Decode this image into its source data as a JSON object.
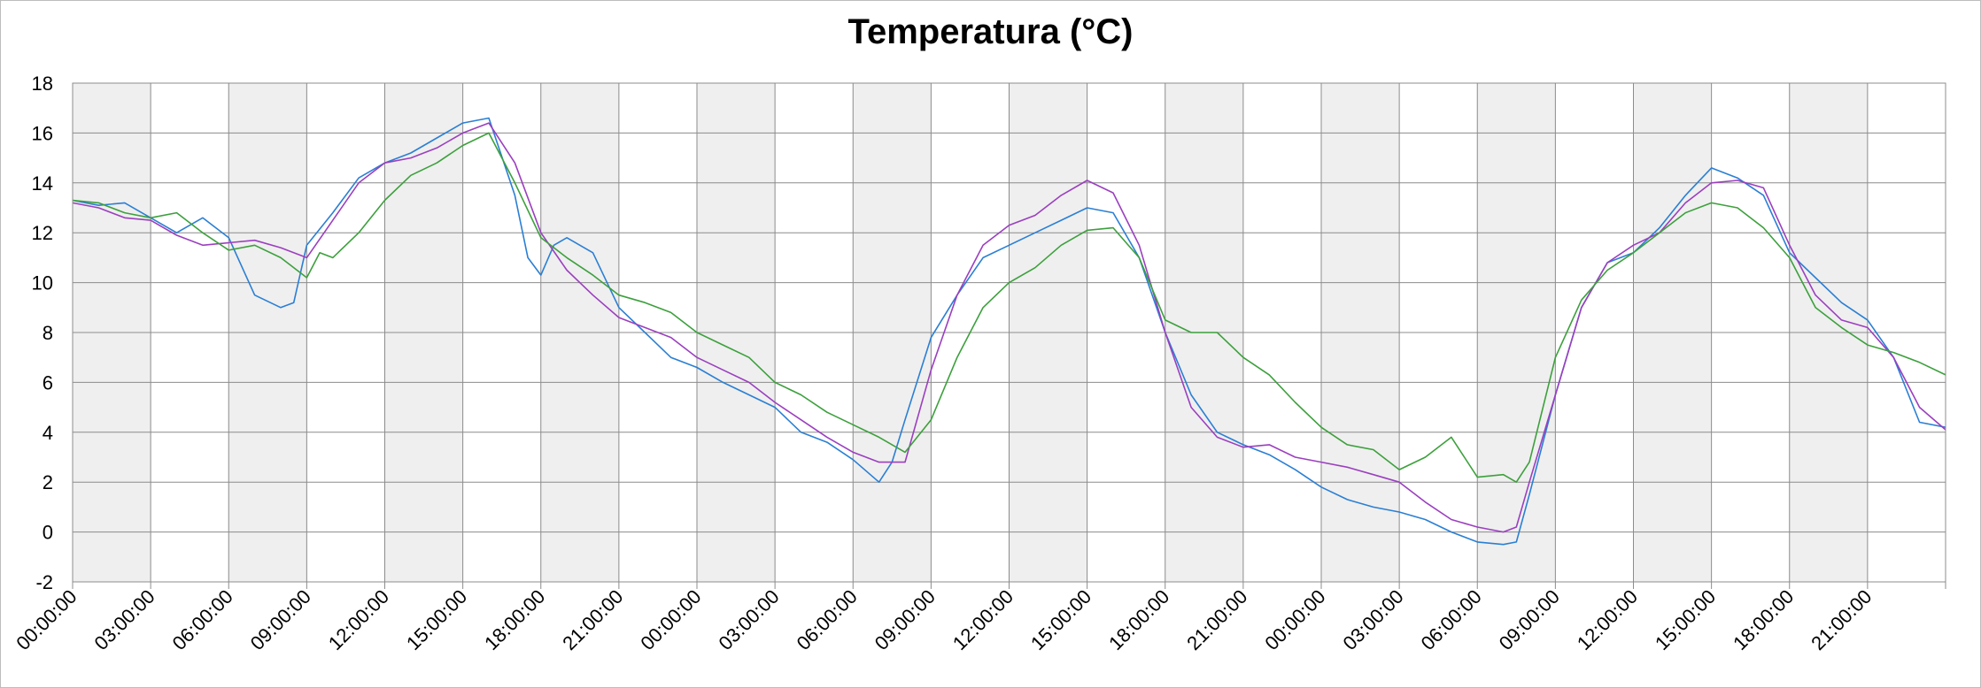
{
  "chart_data": {
    "type": "line",
    "title": "Temperatura (°C)",
    "xlabel": "",
    "ylabel": "",
    "ylim": [
      -2,
      18
    ],
    "y_ticks": [
      "18",
      "16",
      "14",
      "12",
      "10",
      "8",
      "6",
      "4",
      "2",
      "0",
      "-2"
    ],
    "x_ticks": [
      "00:00:00",
      "03:00:00",
      "06:00:00",
      "09:00:00",
      "12:00:00",
      "15:00:00",
      "18:00:00",
      "21:00:00",
      "00:00:00",
      "03:00:00",
      "06:00:00",
      "09:00:00",
      "12:00:00",
      "15:00:00",
      "18:00:00",
      "21:00:00",
      "00:00:00",
      "03:00:00",
      "06:00:00",
      "09:00:00",
      "12:00:00",
      "15:00:00",
      "18:00:00",
      "21:00:00"
    ],
    "x_range_hours": [
      0,
      72
    ],
    "grid": true,
    "shaded_bands": "alternating 3-hour bands (every other interval shaded light gray)",
    "legend": "none",
    "series": [
      {
        "color": "#2a7fd4",
        "points": [
          [
            0,
            13.3
          ],
          [
            1,
            13.1
          ],
          [
            2,
            13.2
          ],
          [
            3,
            12.6
          ],
          [
            4,
            12.0
          ],
          [
            5,
            12.6
          ],
          [
            6,
            11.8
          ],
          [
            7,
            9.5
          ],
          [
            8,
            9.0
          ],
          [
            8.5,
            9.2
          ],
          [
            9,
            11.5
          ],
          [
            10,
            12.8
          ],
          [
            11,
            14.2
          ],
          [
            12,
            14.8
          ],
          [
            13,
            15.2
          ],
          [
            14,
            15.8
          ],
          [
            15,
            16.4
          ],
          [
            16,
            16.6
          ],
          [
            17,
            13.5
          ],
          [
            17.5,
            11.0
          ],
          [
            18,
            10.3
          ],
          [
            18.5,
            11.5
          ],
          [
            19,
            11.8
          ],
          [
            20,
            11.2
          ],
          [
            21,
            9.0
          ],
          [
            22,
            8.0
          ],
          [
            23,
            7.0
          ],
          [
            24,
            6.6
          ],
          [
            25,
            6.0
          ],
          [
            26,
            5.5
          ],
          [
            27,
            5.0
          ],
          [
            28,
            4.0
          ],
          [
            29,
            3.6
          ],
          [
            30,
            2.9
          ],
          [
            31,
            2.0
          ],
          [
            31.5,
            2.8
          ],
          [
            32,
            4.5
          ],
          [
            33,
            7.8
          ],
          [
            34,
            9.5
          ],
          [
            35,
            11.0
          ],
          [
            36,
            11.5
          ],
          [
            37,
            12.0
          ],
          [
            38,
            12.5
          ],
          [
            39,
            13.0
          ],
          [
            40,
            12.8
          ],
          [
            41,
            11.0
          ],
          [
            42,
            8.0
          ],
          [
            43,
            5.5
          ],
          [
            44,
            4.0
          ],
          [
            45,
            3.5
          ],
          [
            46,
            3.1
          ],
          [
            47,
            2.5
          ],
          [
            48,
            1.8
          ],
          [
            49,
            1.3
          ],
          [
            50,
            1.0
          ],
          [
            51,
            0.8
          ],
          [
            52,
            0.5
          ],
          [
            53,
            0.0
          ],
          [
            54,
            -0.4
          ],
          [
            55,
            -0.5
          ],
          [
            55.5,
            -0.4
          ],
          [
            56,
            1.5
          ],
          [
            57,
            5.5
          ],
          [
            58,
            9.0
          ],
          [
            59,
            10.8
          ],
          [
            60,
            11.2
          ],
          [
            61,
            12.2
          ],
          [
            62,
            13.5
          ],
          [
            63,
            14.6
          ],
          [
            64,
            14.2
          ],
          [
            65,
            13.5
          ],
          [
            66,
            11.2
          ],
          [
            67,
            10.2
          ],
          [
            68,
            9.2
          ],
          [
            69,
            8.5
          ],
          [
            70,
            7.0
          ],
          [
            71,
            4.4
          ],
          [
            72,
            4.2
          ]
        ]
      },
      {
        "color": "#9b3fbf",
        "points": [
          [
            0,
            13.2
          ],
          [
            1,
            13.0
          ],
          [
            2,
            12.6
          ],
          [
            3,
            12.5
          ],
          [
            4,
            11.9
          ],
          [
            5,
            11.5
          ],
          [
            6,
            11.6
          ],
          [
            7,
            11.7
          ],
          [
            8,
            11.4
          ],
          [
            9,
            11.0
          ],
          [
            10,
            12.5
          ],
          [
            11,
            14.0
          ],
          [
            12,
            14.8
          ],
          [
            13,
            15.0
          ],
          [
            14,
            15.4
          ],
          [
            15,
            16.0
          ],
          [
            16,
            16.4
          ],
          [
            17,
            14.8
          ],
          [
            18,
            12.0
          ],
          [
            19,
            10.5
          ],
          [
            20,
            9.5
          ],
          [
            21,
            8.6
          ],
          [
            22,
            8.2
          ],
          [
            23,
            7.8
          ],
          [
            24,
            7.0
          ],
          [
            25,
            6.5
          ],
          [
            26,
            6.0
          ],
          [
            27,
            5.2
          ],
          [
            28,
            4.5
          ],
          [
            29,
            3.8
          ],
          [
            30,
            3.2
          ],
          [
            31,
            2.8
          ],
          [
            32,
            2.8
          ],
          [
            33,
            6.5
          ],
          [
            34,
            9.5
          ],
          [
            35,
            11.5
          ],
          [
            36,
            12.3
          ],
          [
            37,
            12.7
          ],
          [
            38,
            13.5
          ],
          [
            39,
            14.1
          ],
          [
            40,
            13.6
          ],
          [
            41,
            11.5
          ],
          [
            42,
            8.0
          ],
          [
            43,
            5.0
          ],
          [
            44,
            3.8
          ],
          [
            45,
            3.4
          ],
          [
            46,
            3.5
          ],
          [
            47,
            3.0
          ],
          [
            48,
            2.8
          ],
          [
            49,
            2.6
          ],
          [
            50,
            2.3
          ],
          [
            51,
            2.0
          ],
          [
            52,
            1.2
          ],
          [
            53,
            0.5
          ],
          [
            54,
            0.2
          ],
          [
            55,
            0.0
          ],
          [
            55.5,
            0.2
          ],
          [
            56,
            2.0
          ],
          [
            57,
            5.5
          ],
          [
            58,
            9.0
          ],
          [
            59,
            10.8
          ],
          [
            60,
            11.5
          ],
          [
            61,
            12.0
          ],
          [
            62,
            13.2
          ],
          [
            63,
            14.0
          ],
          [
            64,
            14.1
          ],
          [
            65,
            13.8
          ],
          [
            66,
            11.5
          ],
          [
            67,
            9.5
          ],
          [
            68,
            8.5
          ],
          [
            69,
            8.2
          ],
          [
            70,
            7.0
          ],
          [
            71,
            5.0
          ],
          [
            72,
            4.1
          ]
        ]
      },
      {
        "color": "#3ca03c",
        "points": [
          [
            0,
            13.3
          ],
          [
            1,
            13.2
          ],
          [
            2,
            12.8
          ],
          [
            3,
            12.6
          ],
          [
            4,
            12.8
          ],
          [
            5,
            12.0
          ],
          [
            6,
            11.3
          ],
          [
            7,
            11.5
          ],
          [
            8,
            11.0
          ],
          [
            9,
            10.2
          ],
          [
            9.5,
            11.2
          ],
          [
            10,
            11.0
          ],
          [
            11,
            12.0
          ],
          [
            12,
            13.3
          ],
          [
            13,
            14.3
          ],
          [
            14,
            14.8
          ],
          [
            15,
            15.5
          ],
          [
            16,
            16.0
          ],
          [
            17,
            14.0
          ],
          [
            18,
            11.8
          ],
          [
            19,
            11.0
          ],
          [
            20,
            10.3
          ],
          [
            21,
            9.5
          ],
          [
            22,
            9.2
          ],
          [
            23,
            8.8
          ],
          [
            24,
            8.0
          ],
          [
            25,
            7.5
          ],
          [
            26,
            7.0
          ],
          [
            27,
            6.0
          ],
          [
            28,
            5.5
          ],
          [
            29,
            4.8
          ],
          [
            30,
            4.3
          ],
          [
            31,
            3.8
          ],
          [
            32,
            3.2
          ],
          [
            33,
            4.5
          ],
          [
            34,
            7.0
          ],
          [
            35,
            9.0
          ],
          [
            36,
            10.0
          ],
          [
            37,
            10.6
          ],
          [
            38,
            11.5
          ],
          [
            39,
            12.1
          ],
          [
            40,
            12.2
          ],
          [
            41,
            11.0
          ],
          [
            42,
            8.5
          ],
          [
            43,
            8.0
          ],
          [
            44,
            8.0
          ],
          [
            45,
            7.0
          ],
          [
            46,
            6.3
          ],
          [
            47,
            5.2
          ],
          [
            48,
            4.2
          ],
          [
            49,
            3.5
          ],
          [
            50,
            3.3
          ],
          [
            51,
            2.5
          ],
          [
            52,
            3.0
          ],
          [
            53,
            3.8
          ],
          [
            53.5,
            3.0
          ],
          [
            54,
            2.2
          ],
          [
            55,
            2.3
          ],
          [
            55.5,
            2.0
          ],
          [
            56,
            2.8
          ],
          [
            57,
            7.0
          ],
          [
            58,
            9.3
          ],
          [
            59,
            10.5
          ],
          [
            60,
            11.2
          ],
          [
            61,
            12.0
          ],
          [
            62,
            12.8
          ],
          [
            63,
            13.2
          ],
          [
            64,
            13.0
          ],
          [
            65,
            12.2
          ],
          [
            66,
            11.0
          ],
          [
            67,
            9.0
          ],
          [
            68,
            8.2
          ],
          [
            69,
            7.5
          ],
          [
            70,
            7.2
          ],
          [
            71,
            6.8
          ],
          [
            72,
            6.3
          ]
        ]
      }
    ]
  }
}
